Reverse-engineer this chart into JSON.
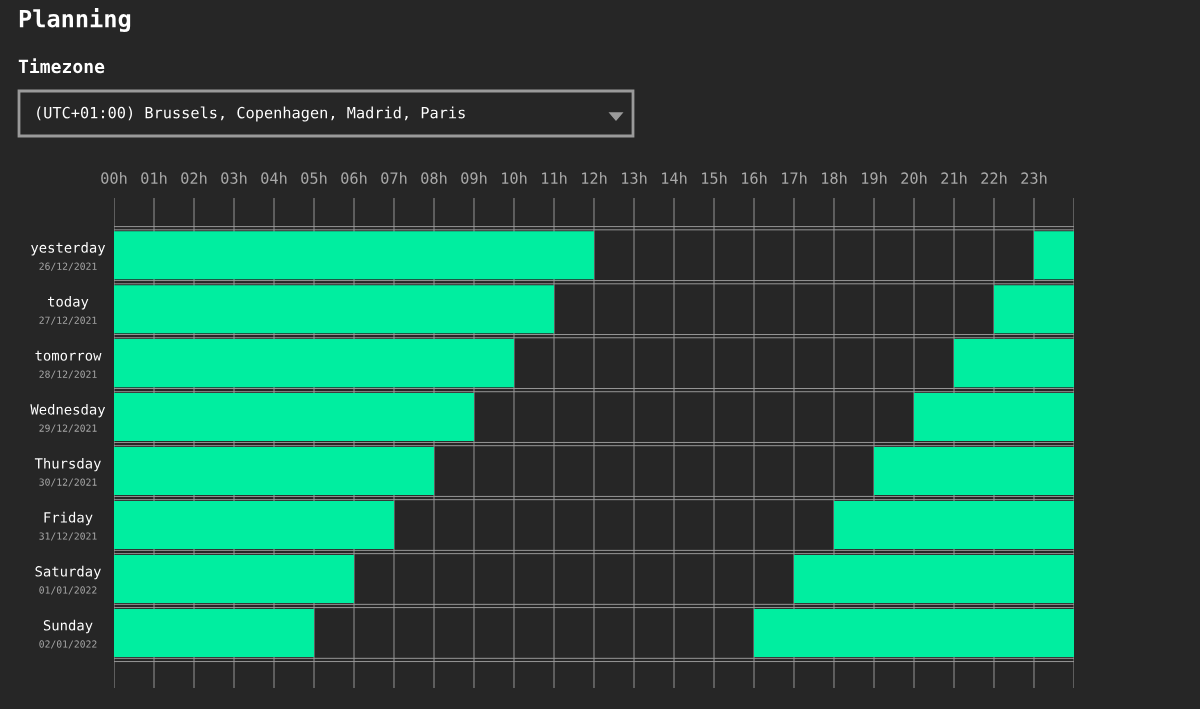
{
  "chart_data": {
    "type": "bar",
    "orientation": "horizontal",
    "title": "Planning",
    "subtitle": "Timezone",
    "annotations": [
      "(UTC+01:00) Brussels, Copenhagen, Madrid, Paris"
    ],
    "categories": [
      "yesterday\n26/12/2021",
      "today\n27/12/2021",
      "tomorrow\n28/12/2021",
      "Wednesday\n29/12/2021",
      "Thursday\n30/12/2021",
      "Friday\n31/12/2021",
      "Saturday\n01/01/2022",
      "Sunday\n02/01/2022"
    ],
    "series": [
      {
        "color": "#00eea0",
        "base": [
          0,
          0,
          0,
          0,
          0,
          0,
          0,
          0
        ],
        "values": [
          12,
          11,
          10,
          9,
          8,
          7,
          6,
          5
        ]
      },
      {
        "color": "#00eea0",
        "base": [
          23,
          22,
          21,
          20,
          19,
          18,
          17,
          16
        ],
        "values": [
          1,
          2,
          3,
          4,
          5,
          6,
          7,
          8
        ]
      }
    ],
    "xlim": [
      0,
      24
    ],
    "xticks": [
      {
        "value": 0,
        "label": "00h"
      },
      {
        "value": 1,
        "label": "01h"
      },
      {
        "value": 2,
        "label": "02h"
      },
      {
        "value": 3,
        "label": "03h"
      },
      {
        "value": 4,
        "label": "04h"
      },
      {
        "value": 5,
        "label": "05h"
      },
      {
        "value": 6,
        "label": "06h"
      },
      {
        "value": 7,
        "label": "07h"
      },
      {
        "value": 8,
        "label": "08h"
      },
      {
        "value": 9,
        "label": "09h"
      },
      {
        "value": 10,
        "label": "10h"
      },
      {
        "value": 11,
        "label": "11h"
      },
      {
        "value": 12,
        "label": "12h"
      },
      {
        "value": 13,
        "label": "13h"
      },
      {
        "value": 14,
        "label": "14h"
      },
      {
        "value": 15,
        "label": "15h"
      },
      {
        "value": 16,
        "label": "16h"
      },
      {
        "value": 17,
        "label": "17h"
      },
      {
        "value": 18,
        "label": "18h"
      },
      {
        "value": 19,
        "label": "19h"
      },
      {
        "value": 20,
        "label": "20h"
      },
      {
        "value": 21,
        "label": "21h"
      },
      {
        "value": 22,
        "label": "22h"
      },
      {
        "value": 23,
        "label": "23h"
      },
      {
        "value": 24,
        "label": null
      }
    ],
    "grid": "x"
  }
}
